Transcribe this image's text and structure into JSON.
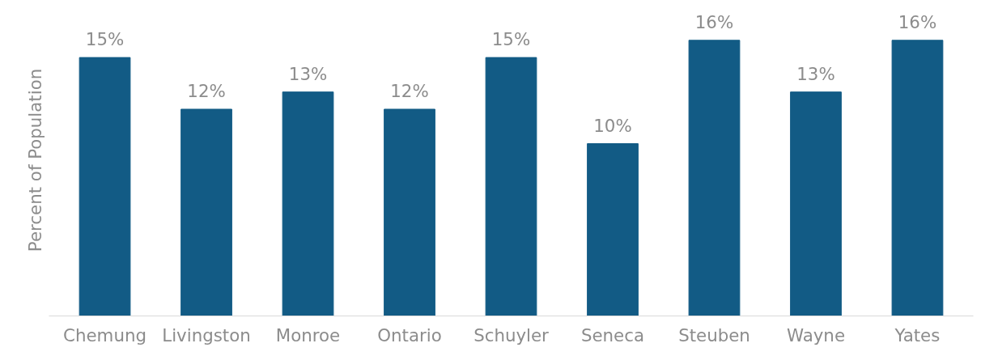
{
  "chart_data": {
    "type": "bar",
    "ylabel": "Percent of Population",
    "categories": [
      "Chemung",
      "Livingston",
      "Monroe",
      "Ontario",
      "Schuyler",
      "Seneca",
      "Steuben",
      "Wayne",
      "Yates"
    ],
    "values": [
      15,
      12,
      13,
      12,
      15,
      10,
      16,
      13,
      16
    ],
    "value_labels": [
      "15%",
      "12%",
      "13%",
      "12%",
      "15%",
      "10%",
      "16%",
      "13%",
      "16%"
    ],
    "color": "#125b85",
    "grid": false
  }
}
